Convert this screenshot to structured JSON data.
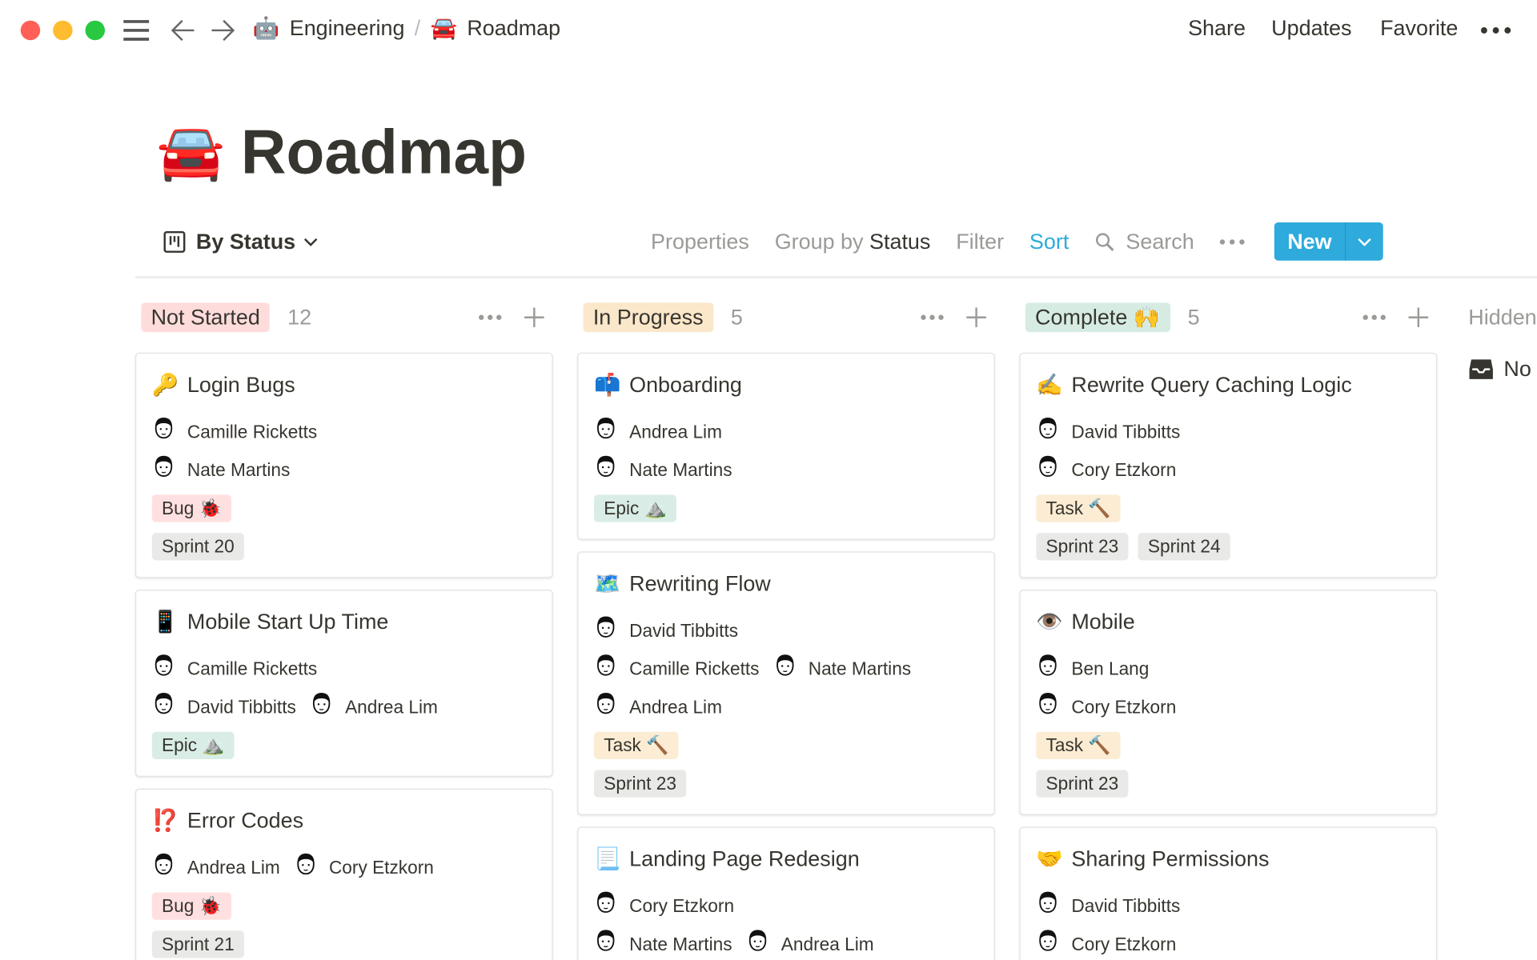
{
  "window": {
    "controls": {
      "close": "#ff5f57",
      "minimize": "#febc2e",
      "zoom": "#28c840"
    }
  },
  "breadcrumb": [
    {
      "icon": "🤖",
      "label": "Engineering"
    },
    {
      "icon": "🚘",
      "label": "Roadmap"
    }
  ],
  "breadcrumb_separator": "/",
  "topbar": {
    "share": "Share",
    "updates": "Updates",
    "favorite": "Favorite"
  },
  "page": {
    "icon": "🚘",
    "title": "Roadmap"
  },
  "toolbar": {
    "view": "By Status",
    "properties": "Properties",
    "group_by": "Group by",
    "group_by_value": "Status",
    "filter": "Filter",
    "sort": "Sort",
    "search": "Search",
    "new": "New",
    "accent": "#2eaadc"
  },
  "hidden_column": {
    "label": "Hidden",
    "item": "No"
  },
  "tag_colors": {
    "Bug": "#ffe0e0",
    "Epic": "#d9ede6",
    "Task": "#fbecd3",
    "Sprint": "#e9e9e7"
  },
  "columns": [
    {
      "status": "Not Started",
      "color": "#ffdcdc",
      "count": "12",
      "cards": [
        {
          "icon": "🔑",
          "title": "Login Bugs",
          "people": [
            [
              "Camille Ricketts"
            ],
            [
              "Nate Martins"
            ]
          ],
          "tags": [
            [
              {
                "label": "Bug 🐞",
                "kind": "Bug"
              }
            ],
            [
              {
                "label": "Sprint 20",
                "kind": "Sprint"
              }
            ]
          ]
        },
        {
          "icon": "📱",
          "title": "Mobile Start Up Time",
          "people": [
            [
              "Camille Ricketts"
            ],
            [
              "David Tibbitts",
              "Andrea Lim"
            ]
          ],
          "tags": [
            [
              {
                "label": "Epic ⛰️",
                "kind": "Epic"
              }
            ]
          ]
        },
        {
          "icon": "⁉️",
          "title": "Error Codes",
          "people": [
            [
              "Andrea Lim",
              "Cory Etzkorn"
            ]
          ],
          "tags": [
            [
              {
                "label": "Bug 🐞",
                "kind": "Bug"
              }
            ],
            [
              {
                "label": "Sprint 21",
                "kind": "Sprint"
              }
            ]
          ]
        }
      ]
    },
    {
      "status": "In Progress",
      "color": "#fbe7c9",
      "count": "5",
      "cards": [
        {
          "icon": "📫",
          "title": "Onboarding",
          "people": [
            [
              "Andrea Lim"
            ],
            [
              "Nate Martins"
            ]
          ],
          "tags": [
            [
              {
                "label": "Epic ⛰️",
                "kind": "Epic"
              }
            ]
          ]
        },
        {
          "icon": "🗺️",
          "title": "Rewriting Flow",
          "people": [
            [
              "David Tibbitts"
            ],
            [
              "Camille Ricketts",
              "Nate Martins"
            ],
            [
              "Andrea Lim"
            ]
          ],
          "tags": [
            [
              {
                "label": "Task 🔨",
                "kind": "Task"
              }
            ],
            [
              {
                "label": "Sprint 23",
                "kind": "Sprint"
              }
            ]
          ]
        },
        {
          "icon": "📃",
          "title": "Landing Page Redesign",
          "people": [
            [
              "Cory Etzkorn"
            ],
            [
              "Nate Martins",
              "Andrea Lim"
            ]
          ],
          "tags": []
        }
      ]
    },
    {
      "status": "Complete 🙌",
      "color": "#d6ece3",
      "count": "5",
      "cards": [
        {
          "icon": "✍️",
          "title": "Rewrite Query Caching Logic",
          "people": [
            [
              "David Tibbitts"
            ],
            [
              "Cory Etzkorn"
            ]
          ],
          "tags": [
            [
              {
                "label": "Task 🔨",
                "kind": "Task"
              }
            ],
            [
              {
                "label": "Sprint 23",
                "kind": "Sprint"
              },
              {
                "label": "Sprint 24",
                "kind": "Sprint"
              }
            ]
          ]
        },
        {
          "icon": "👁️",
          "title": "Mobile",
          "people": [
            [
              "Ben Lang"
            ],
            [
              "Cory Etzkorn"
            ]
          ],
          "tags": [
            [
              {
                "label": "Task 🔨",
                "kind": "Task"
              }
            ],
            [
              {
                "label": "Sprint 23",
                "kind": "Sprint"
              }
            ]
          ]
        },
        {
          "icon": "🤝",
          "title": "Sharing Permissions",
          "people": [
            [
              "David Tibbitts"
            ],
            [
              "Cory Etzkorn"
            ]
          ],
          "tags": []
        }
      ]
    }
  ]
}
